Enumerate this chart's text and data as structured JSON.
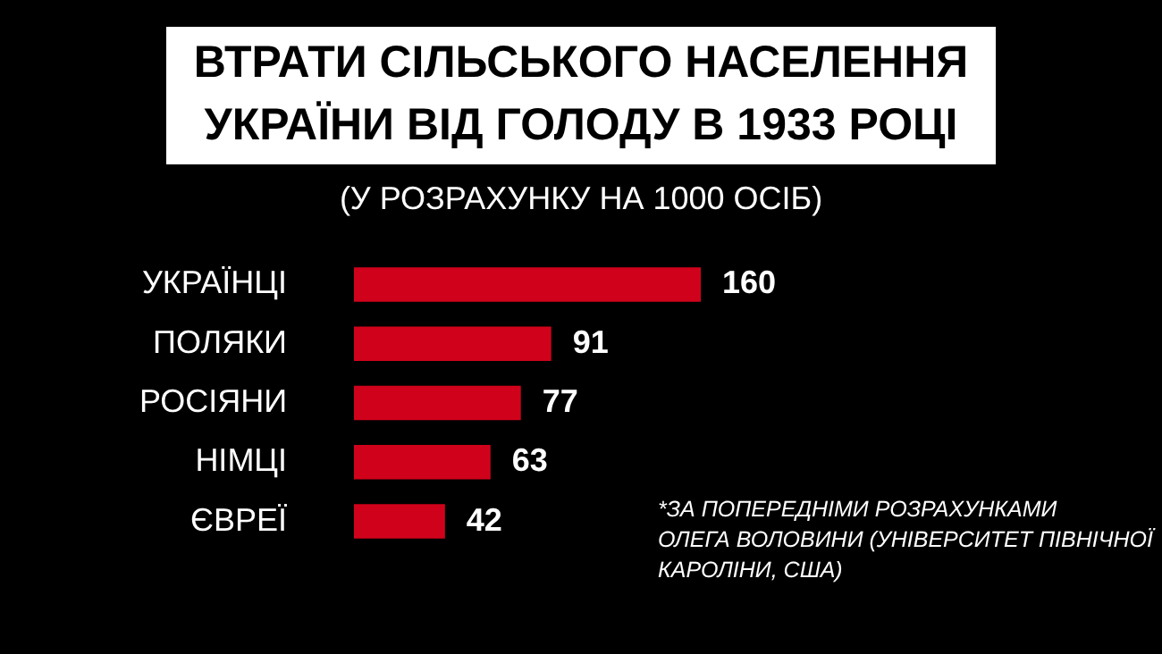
{
  "chart_data": {
    "type": "bar",
    "orientation": "horizontal",
    "title": "ВТРАТИ СІЛЬСЬКОГО НАСЕЛЕННЯ\nУКРАЇНИ  ВІД ГОЛОДУ В 1933 РОЦІ",
    "subtitle": "(У РОЗРАХУНКУ НА 1000 ОСІБ)",
    "categories": [
      "УКРАЇНЦІ",
      "ПОЛЯКИ",
      "РОСІЯНИ",
      "НІМЦІ",
      "ЄВРЕЇ"
    ],
    "values": [
      160,
      91,
      77,
      63,
      42
    ],
    "color": "#d0021b",
    "data_labels": true,
    "grid": false,
    "annotations": [
      "*ЗА ПОПЕРЕДНІМИ РОЗРАХУНКАМИ\nОЛЕГА ВОЛОВИНИ (УНІВЕРСИТЕТ ПІВНІЧНОЇ\nКАРОЛІНИ, США)"
    ]
  }
}
